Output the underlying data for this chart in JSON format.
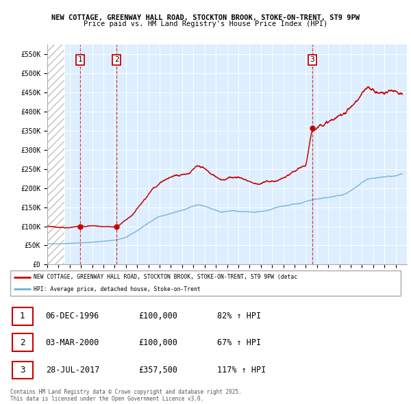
{
  "title1": "NEW COTTAGE, GREENWAY HALL ROAD, STOCKTON BROOK, STOKE-ON-TRENT, ST9 9PW",
  "title2": "Price paid vs. HM Land Registry's House Price Index (HPI)",
  "ylim": [
    0,
    575000
  ],
  "yticks": [
    0,
    50000,
    100000,
    150000,
    200000,
    250000,
    300000,
    350000,
    400000,
    450000,
    500000,
    550000
  ],
  "ytick_labels": [
    "£0",
    "£50K",
    "£100K",
    "£150K",
    "£200K",
    "£250K",
    "£300K",
    "£350K",
    "£400K",
    "£450K",
    "£500K",
    "£550K"
  ],
  "xlim_start": 1994.0,
  "xlim_end": 2026.0,
  "hpi_color": "#6baed6",
  "price_color": "#cc0000",
  "sale_marker_color": "#cc0000",
  "dashed_line_color": "#cc0000",
  "sale_events": [
    {
      "date_decimal": 1996.93,
      "price": 100000,
      "label": "1"
    },
    {
      "date_decimal": 2000.17,
      "price": 100000,
      "label": "2"
    },
    {
      "date_decimal": 2017.57,
      "price": 357500,
      "label": "3"
    }
  ],
  "legend_property_label": "NEW COTTAGE, GREENWAY HALL ROAD, STOCKTON BROOK, STOKE-ON-TRENT, ST9 9PW (detac",
  "legend_hpi_label": "HPI: Average price, detached house, Stoke-on-Trent",
  "table_rows": [
    {
      "num": "1",
      "date": "06-DEC-1996",
      "price": "£100,000",
      "hpi": "82% ↑ HPI"
    },
    {
      "num": "2",
      "date": "03-MAR-2000",
      "price": "£100,000",
      "hpi": "67% ↑ HPI"
    },
    {
      "num": "3",
      "date": "28-JUL-2017",
      "price": "£357,500",
      "hpi": "117% ↑ HPI"
    }
  ],
  "footer": "Contains HM Land Registry data © Crown copyright and database right 2025.\nThis data is licensed under the Open Government Licence v3.0.",
  "plot_bg_color": "#ddeeff",
  "hatch_region_end": 1995.5,
  "hpi_anchor_points": [
    [
      1994.0,
      54000
    ],
    [
      1995.0,
      55000
    ],
    [
      1996.0,
      56000
    ],
    [
      1997.0,
      57500
    ],
    [
      1998.0,
      59000
    ],
    [
      1999.0,
      61000
    ],
    [
      2000.0,
      64000
    ],
    [
      2001.0,
      71000
    ],
    [
      2002.0,
      88000
    ],
    [
      2003.0,
      108000
    ],
    [
      2004.0,
      125000
    ],
    [
      2005.0,
      133000
    ],
    [
      2006.0,
      143000
    ],
    [
      2007.0,
      155000
    ],
    [
      2007.5,
      158000
    ],
    [
      2008.5,
      148000
    ],
    [
      2009.5,
      138000
    ],
    [
      2010.5,
      143000
    ],
    [
      2011.5,
      140000
    ],
    [
      2012.5,
      138000
    ],
    [
      2013.5,
      141000
    ],
    [
      2014.5,
      147000
    ],
    [
      2015.5,
      152000
    ],
    [
      2016.5,
      157000
    ],
    [
      2017.5,
      163000
    ],
    [
      2018.5,
      168000
    ],
    [
      2019.5,
      170000
    ],
    [
      2020.5,
      175000
    ],
    [
      2021.5,
      195000
    ],
    [
      2022.5,
      215000
    ],
    [
      2023.5,
      218000
    ],
    [
      2024.5,
      222000
    ],
    [
      2025.5,
      228000
    ]
  ],
  "prop_anchor_points": [
    [
      1994.0,
      100000
    ],
    [
      1996.0,
      97000
    ],
    [
      1996.93,
      100000
    ],
    [
      1998.0,
      103000
    ],
    [
      2000.17,
      100000
    ],
    [
      2000.5,
      108000
    ],
    [
      2001.5,
      130000
    ],
    [
      2002.5,
      170000
    ],
    [
      2003.5,
      210000
    ],
    [
      2004.5,
      235000
    ],
    [
      2005.5,
      248000
    ],
    [
      2006.5,
      258000
    ],
    [
      2007.2,
      272000
    ],
    [
      2007.8,
      268000
    ],
    [
      2008.5,
      250000
    ],
    [
      2009.0,
      240000
    ],
    [
      2009.5,
      237000
    ],
    [
      2010.5,
      245000
    ],
    [
      2011.0,
      248000
    ],
    [
      2011.5,
      242000
    ],
    [
      2012.0,
      238000
    ],
    [
      2012.5,
      233000
    ],
    [
      2013.0,
      235000
    ],
    [
      2013.5,
      238000
    ],
    [
      2014.0,
      240000
    ],
    [
      2014.5,
      242000
    ],
    [
      2015.0,
      248000
    ],
    [
      2015.5,
      252000
    ],
    [
      2016.0,
      258000
    ],
    [
      2016.5,
      262000
    ],
    [
      2017.0,
      268000
    ],
    [
      2017.57,
      357500
    ],
    [
      2018.0,
      370000
    ],
    [
      2018.5,
      385000
    ],
    [
      2019.0,
      390000
    ],
    [
      2019.5,
      395000
    ],
    [
      2020.0,
      400000
    ],
    [
      2020.5,
      415000
    ],
    [
      2021.0,
      430000
    ],
    [
      2021.5,
      445000
    ],
    [
      2022.0,
      460000
    ],
    [
      2022.5,
      470000
    ],
    [
      2023.0,
      465000
    ],
    [
      2023.5,
      460000
    ],
    [
      2024.0,
      462000
    ],
    [
      2024.5,
      465000
    ],
    [
      2025.0,
      470000
    ],
    [
      2025.5,
      472000
    ]
  ]
}
